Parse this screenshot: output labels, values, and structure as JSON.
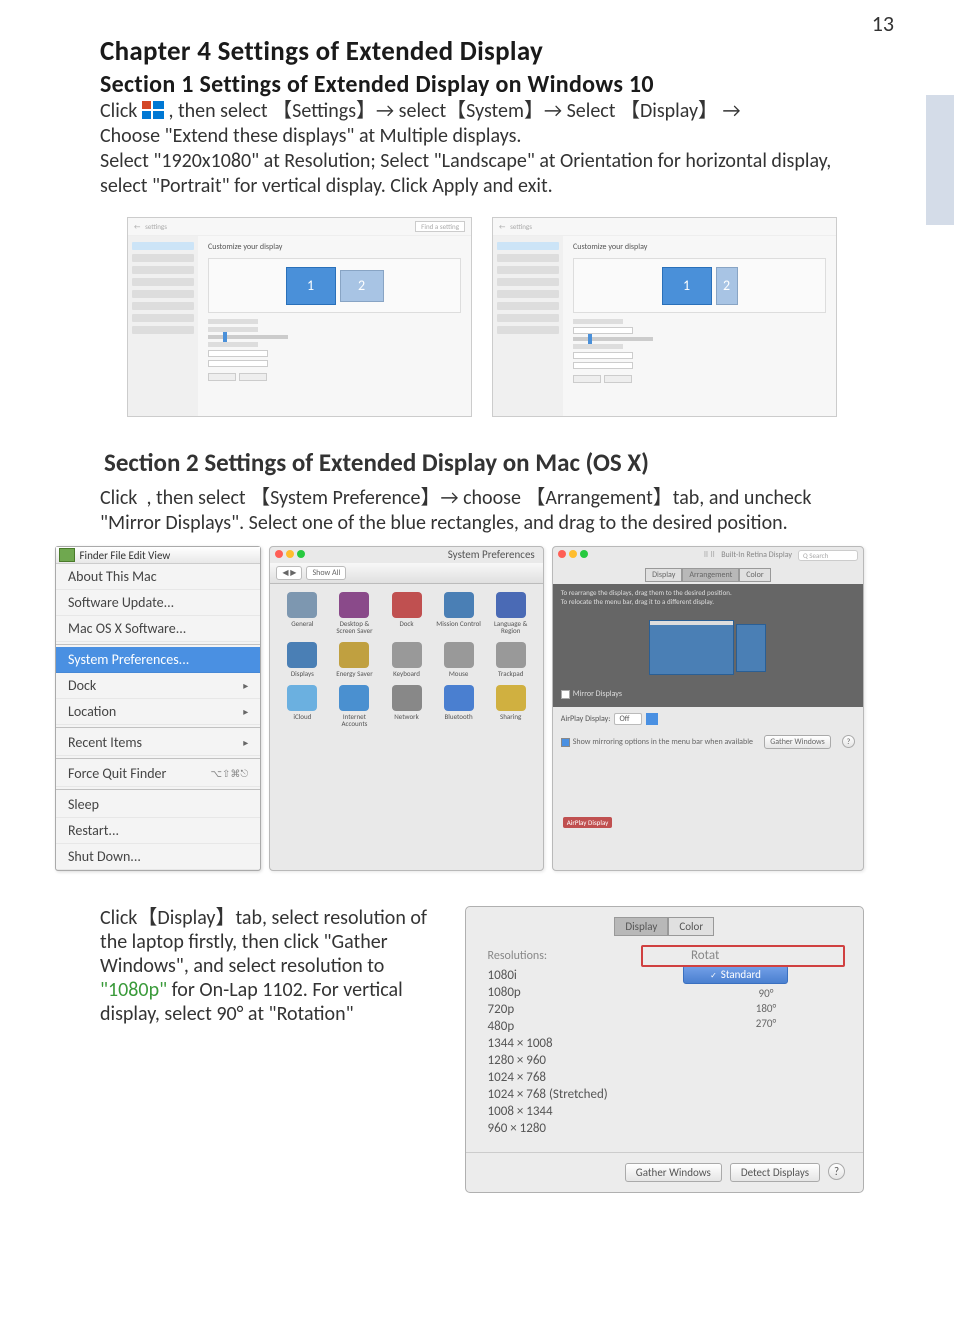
{
  "page_number": "13",
  "chapter": "Chapter 4  Settings of Extended Display",
  "section1_title": "Section 1  Settings of Extended Display on Windows 10",
  "section1_line1a": "Click ",
  "section1_line1b": " , then select 【Settings】→ select【System】→ Select 【Display】 →",
  "section1_line2": "Choose \"Extend these displays\" at Multiple displays.",
  "section1_line3": "Select \"1920x1080\" at Resolution; Select \"Landscape\" at Orientation for horizontal display, select \"Portrait\" for vertical display. Click Apply and exit.",
  "win_a": {
    "customize": "Customize your display",
    "search_ph": "Find a setting",
    "mon1": "1",
    "mon2": "2"
  },
  "win_b": {
    "customize": "Customize your display",
    "mon1": "1",
    "mon2": "2"
  },
  "section2_title": "Section 2 Settings of Extended Display on Mac (OS X)",
  "section2_body_a": "Click ",
  "section2_body_b": " , then select 【System Preference】→ choose 【Arrangement】tab, and uncheck \"Mirror Displays\". Select one of the blue rectangles, and drag to the desired position.",
  "mac_menu": {
    "header": "Finder   File   Edit   View",
    "about": "About This Mac",
    "sw": "Software Update...",
    "osx": "Mac OS X Software...",
    "sysprefs": "System Preferences...",
    "dock": "Dock",
    "location": "Location",
    "recent": "Recent Items",
    "force": "Force Quit Finder",
    "force_key": "⌥⇧⌘⎋",
    "sleep": "Sleep",
    "restart": "Restart...",
    "shutdown": "Shut Down..."
  },
  "sys_panel": {
    "title": "System Preferences",
    "showall": "Show All",
    "cells": [
      {
        "label": "General",
        "bg": "#7d97b0"
      },
      {
        "label": "Desktop & Screen Saver",
        "bg": "#8a4a8a"
      },
      {
        "label": "Dock",
        "bg": "#c05050"
      },
      {
        "label": "Mission Control",
        "bg": "#4a7fb5"
      },
      {
        "label": "Language & Region",
        "bg": "#4a6ab5"
      },
      {
        "label": "Displays",
        "bg": "#4a7fb5"
      },
      {
        "label": "Energy Saver",
        "bg": "#c0a040"
      },
      {
        "label": "Keyboard",
        "bg": "#999"
      },
      {
        "label": "Mouse",
        "bg": "#999"
      },
      {
        "label": "Trackpad",
        "bg": "#999"
      },
      {
        "label": "iCloud",
        "bg": "#6bb0e0"
      },
      {
        "label": "Internet Accounts",
        "bg": "#4a90d0"
      },
      {
        "label": "Network",
        "bg": "#888"
      },
      {
        "label": "Bluetooth",
        "bg": "#4a7fd0"
      },
      {
        "label": "Sharing",
        "bg": "#d0b040"
      }
    ]
  },
  "arr_panel": {
    "title": "Built-In Retina Display",
    "search_ph": "Q Search",
    "tab_display": "Display",
    "tab_arrange": "Arrangement",
    "tab_color": "Color",
    "hint": "To rearrange the displays, drag them to the desired position.\nTo relocate the menu bar, drag it to a different display.",
    "mirror": "Mirror Displays",
    "airplay_lbl": "AirPlay Display:",
    "airplay_val": "Off",
    "show_opt": "Show mirroring options in the menu bar when available",
    "gather": "Gather Windows",
    "air_badge": "AirPlay Display"
  },
  "bottom": {
    "text_a": "Click【Display】tab, select resolution of the laptop firstly, then click \"Gather Windows\", and select resolution to ",
    "text_green": "\"1080p\"",
    "text_b": " for On-Lap 1102. For vertical display, select 90° at \"Rotation\""
  },
  "res_panel": {
    "tab_display": "Display",
    "tab_color": "Color",
    "resolutions_h": "Resolutions:",
    "res_items": [
      "1080i",
      "1080p",
      "720p",
      "480p",
      "1344 × 1008",
      "1280 × 960",
      "1024 × 768",
      "1024 × 768 (Stretched)",
      "1008 × 1344",
      "960 × 1280"
    ],
    "rotation_h": "Rotation",
    "standard": "Standard",
    "rot_opts": [
      "90°",
      "180°",
      "270°"
    ],
    "gather": "Gather Windows",
    "detect": "Detect Displays",
    "q": "?"
  }
}
